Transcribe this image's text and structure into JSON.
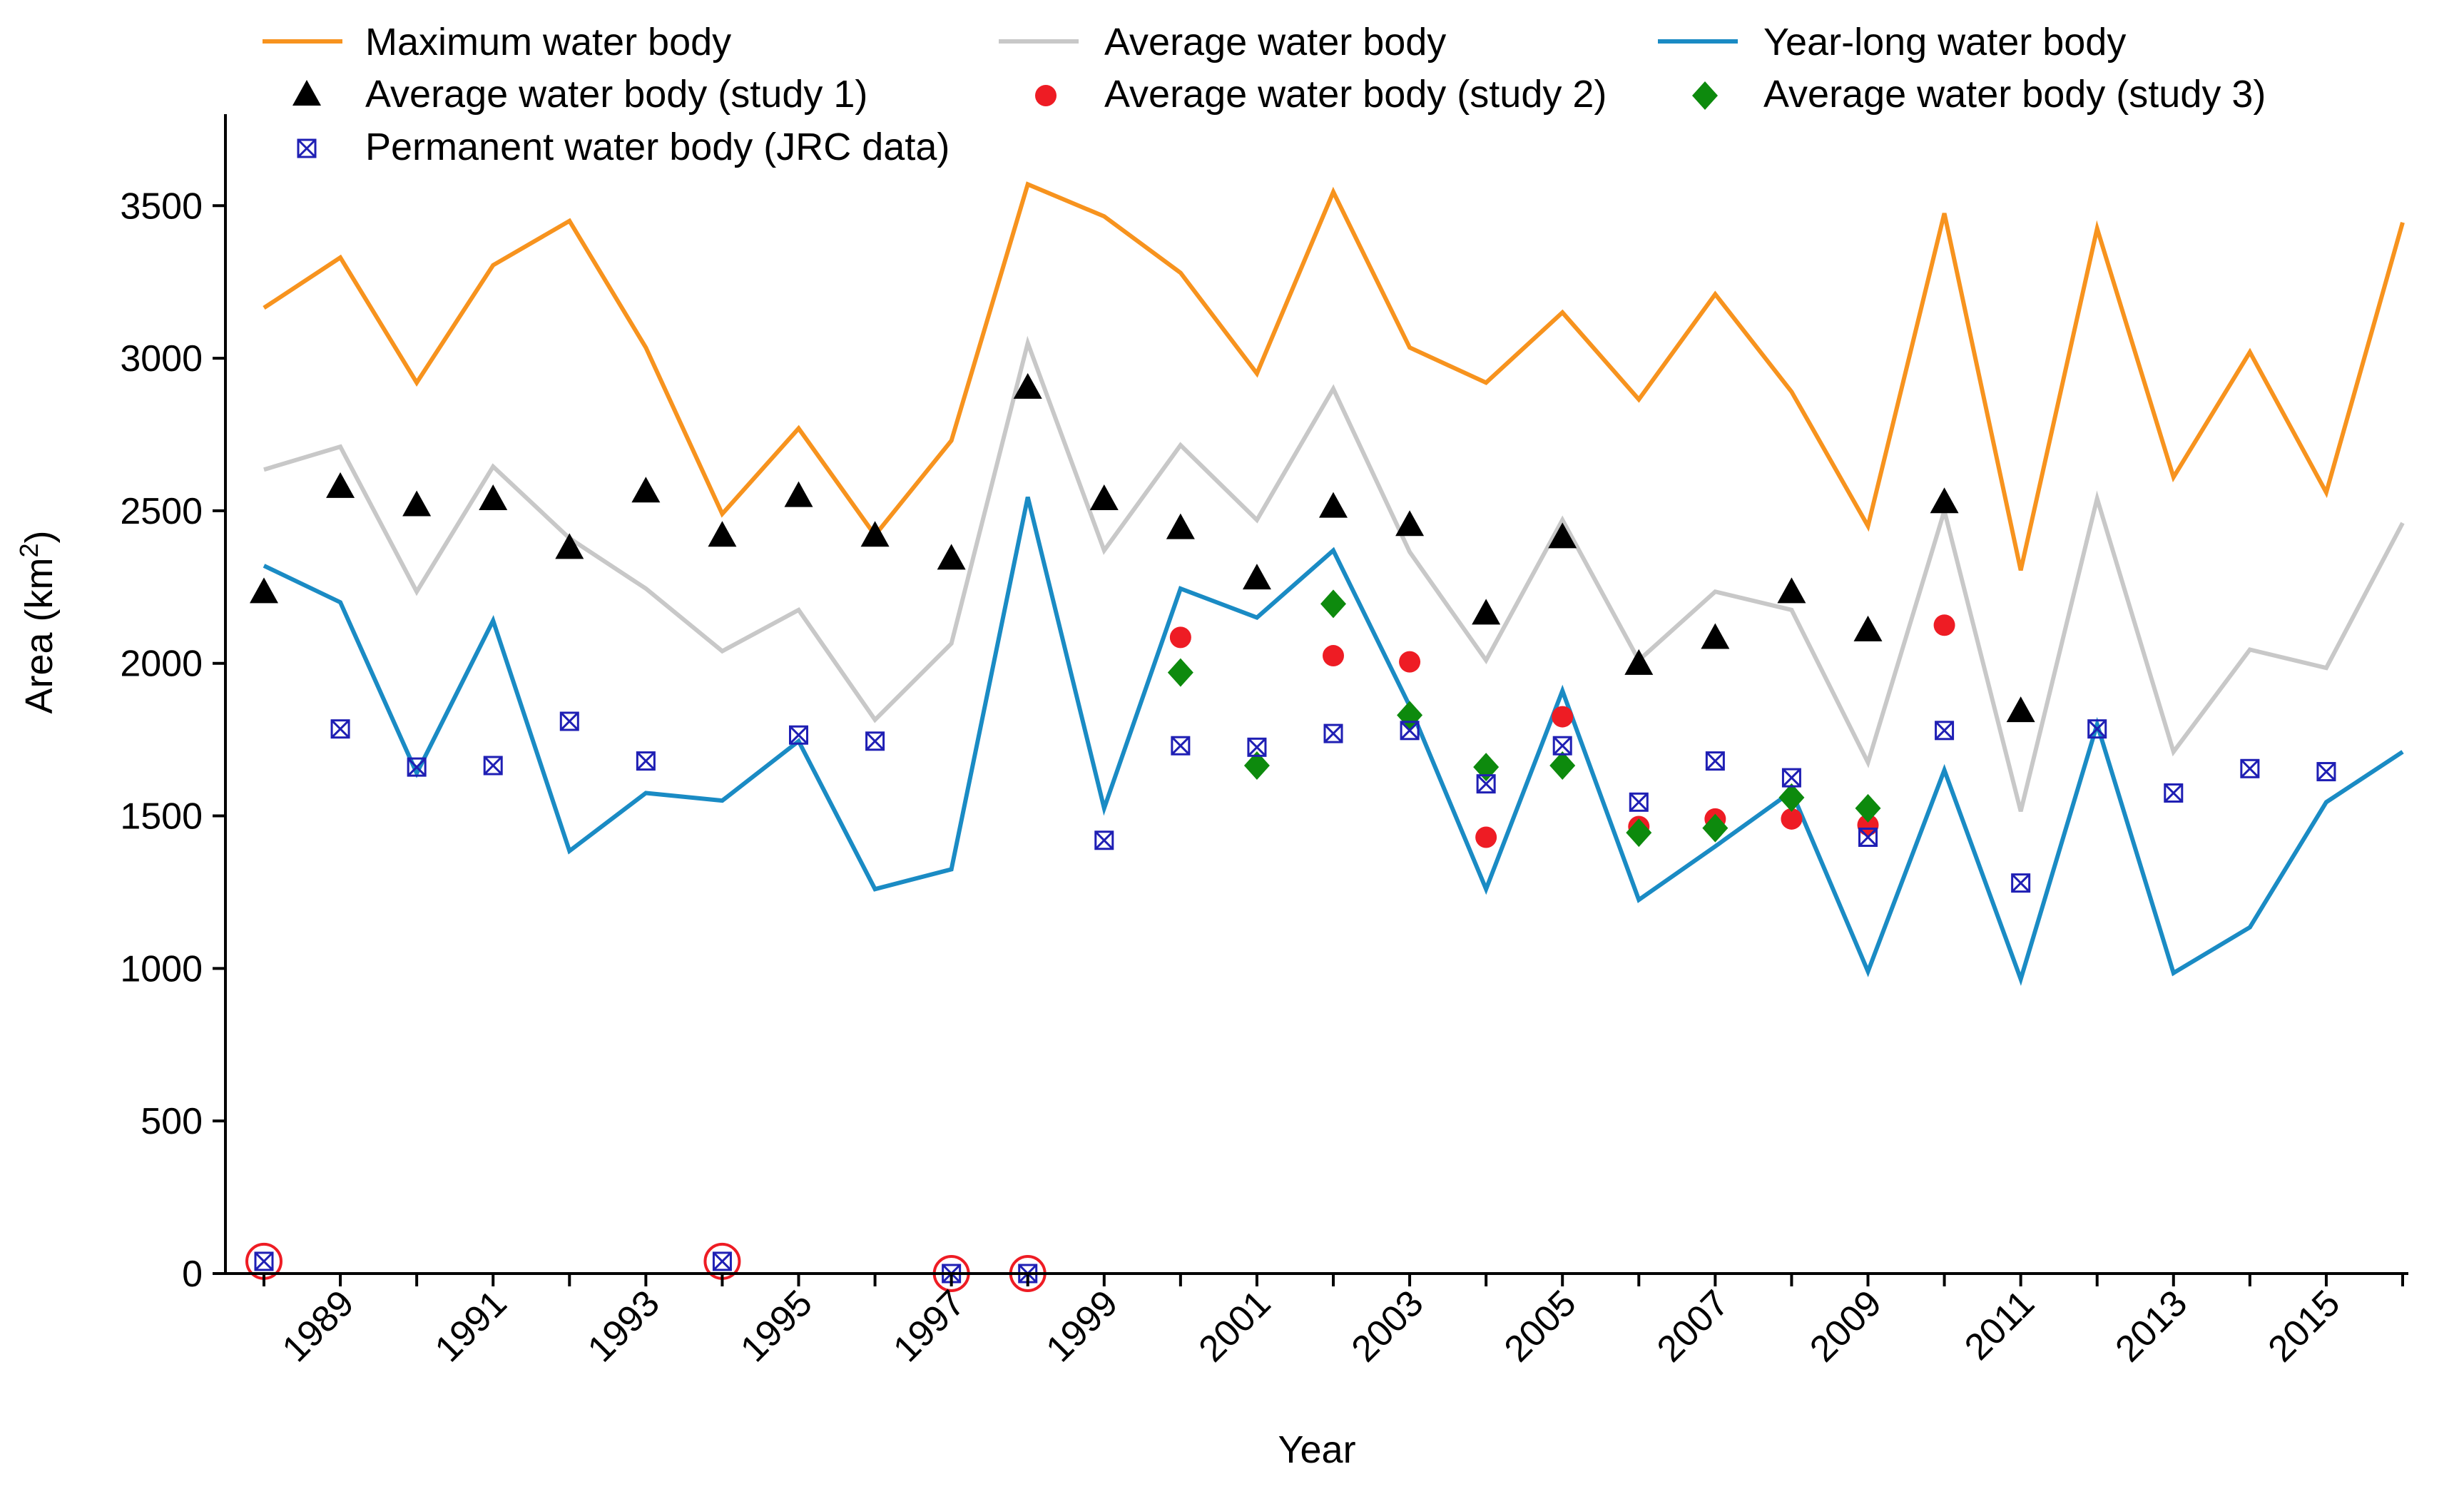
{
  "chart_data": {
    "type": "line",
    "xlabel": "Year",
    "ylabel": "Area (km",
    "ylabel_sup": "2",
    "ylabel_close": ")",
    "ylim": [
      0,
      3800
    ],
    "xlim": [
      1988,
      2016
    ],
    "yticks": [
      0,
      500,
      1000,
      1500,
      2000,
      2500,
      3000,
      3500
    ],
    "xtick_labels": [
      1989,
      1991,
      1993,
      1995,
      1997,
      1999,
      2001,
      2003,
      2005,
      2007,
      2009,
      2011,
      2013,
      2015
    ],
    "legend_position": "top",
    "line_series": [
      {
        "name": "Maximum water body",
        "color": "#F7931E",
        "x": [
          1988,
          1989,
          1990,
          1991,
          1992,
          1993,
          1994,
          1995,
          1996,
          1997,
          1998,
          1999,
          2000,
          2001,
          2002,
          2003,
          2004,
          2005,
          2006,
          2007,
          2008,
          2009,
          2010,
          2011,
          2012,
          2013,
          2014,
          2015,
          2016
        ],
        "values": [
          3165,
          3330,
          2920,
          3305,
          3450,
          3035,
          2490,
          2770,
          2420,
          2730,
          3570,
          3465,
          3280,
          2950,
          3545,
          3035,
          2920,
          3150,
          2865,
          3210,
          2890,
          2450,
          3475,
          2305,
          3425,
          2610,
          3020,
          2560,
          3445
        ]
      },
      {
        "name": "Average water body",
        "color": "#C8C8C8",
        "x": [
          1988,
          1989,
          1990,
          1991,
          1992,
          1993,
          1994,
          1995,
          1996,
          1997,
          1998,
          1999,
          2000,
          2001,
          2002,
          2003,
          2004,
          2005,
          2006,
          2007,
          2008,
          2009,
          2010,
          2011,
          2012,
          2013,
          2014,
          2015,
          2016
        ],
        "values": [
          2635,
          2710,
          2235,
          2645,
          2410,
          2245,
          2040,
          2175,
          1815,
          2065,
          3050,
          2370,
          2715,
          2470,
          2900,
          2365,
          2010,
          2470,
          2010,
          2235,
          2175,
          1675,
          2500,
          1515,
          2540,
          1710,
          2045,
          1985,
          2460
        ]
      },
      {
        "name": "Year-long water body",
        "color": "#1A8BC4",
        "x": [
          1988,
          1989,
          1990,
          1991,
          1992,
          1993,
          1994,
          1995,
          1996,
          1997,
          1998,
          1999,
          2000,
          2001,
          2002,
          2003,
          2004,
          2005,
          2006,
          2007,
          2008,
          2009,
          2010,
          2011,
          2012,
          2013,
          2014,
          2015,
          2016
        ],
        "values": [
          2320,
          2200,
          1640,
          2140,
          1385,
          1575,
          1550,
          1745,
          1260,
          1325,
          2545,
          1525,
          2245,
          2150,
          2370,
          1860,
          1260,
          1910,
          1225,
          1400,
          1580,
          990,
          1650,
          965,
          1800,
          985,
          1135,
          1545,
          1710
        ]
      }
    ],
    "marker_series": [
      {
        "name": "Average water body (study 1)",
        "marker": "triangle",
        "color": "#000000",
        "x": [
          1988,
          1989,
          1990,
          1991,
          1992,
          1993,
          1994,
          1995,
          1996,
          1997,
          1998,
          1999,
          2000,
          2001,
          2002,
          2003,
          2004,
          2005,
          2006,
          2007,
          2008,
          2009,
          2010,
          2011
        ],
        "values": [
          2230,
          2575,
          2515,
          2535,
          2375,
          2560,
          2415,
          2545,
          2415,
          2340,
          2900,
          2535,
          2440,
          2275,
          2510,
          2450,
          2160,
          2410,
          1995,
          2080,
          2230,
          2105,
          2525,
          1840
        ]
      },
      {
        "name": "Average water body (study 2)",
        "marker": "circle",
        "color": "#EE1C24",
        "x": [
          2000,
          2002,
          2003,
          2004,
          2005,
          2006,
          2007,
          2008,
          2009,
          2010
        ],
        "values": [
          2085,
          2025,
          2005,
          1430,
          1825,
          1465,
          1490,
          1490,
          1470,
          2125
        ]
      },
      {
        "name": "Average water body (study 3)",
        "marker": "diamond",
        "color": "#0D8A0D",
        "x": [
          2000,
          2001,
          2002,
          2003,
          2004,
          2005,
          2006,
          2007,
          2008,
          2009
        ],
        "values": [
          1970,
          1665,
          2195,
          1830,
          1660,
          1665,
          1445,
          1460,
          1560,
          1525
        ]
      },
      {
        "name": "Permanent water body (JRC data)",
        "marker": "boxx",
        "color": "#1F1FB4",
        "x": [
          1988,
          1989,
          1990,
          1991,
          1992,
          1993,
          1994,
          1995,
          1996,
          1997,
          1998,
          1999,
          2000,
          2001,
          2002,
          2003,
          2004,
          2005,
          2006,
          2007,
          2008,
          2009,
          2010,
          2011,
          2012,
          2013,
          2014,
          2015
        ],
        "values": [
          40,
          1785,
          1660,
          1665,
          1810,
          1680,
          40,
          1765,
          1745,
          0,
          0,
          1420,
          1730,
          1725,
          1770,
          1780,
          1605,
          1730,
          1545,
          1680,
          1625,
          1430,
          1780,
          1280,
          1785,
          1575,
          1655,
          1645
        ]
      }
    ],
    "highlighted_points": {
      "color": "#EE1C24",
      "x": [
        1988,
        1994,
        1997,
        1998
      ],
      "values": [
        40,
        40,
        0,
        0
      ]
    }
  }
}
